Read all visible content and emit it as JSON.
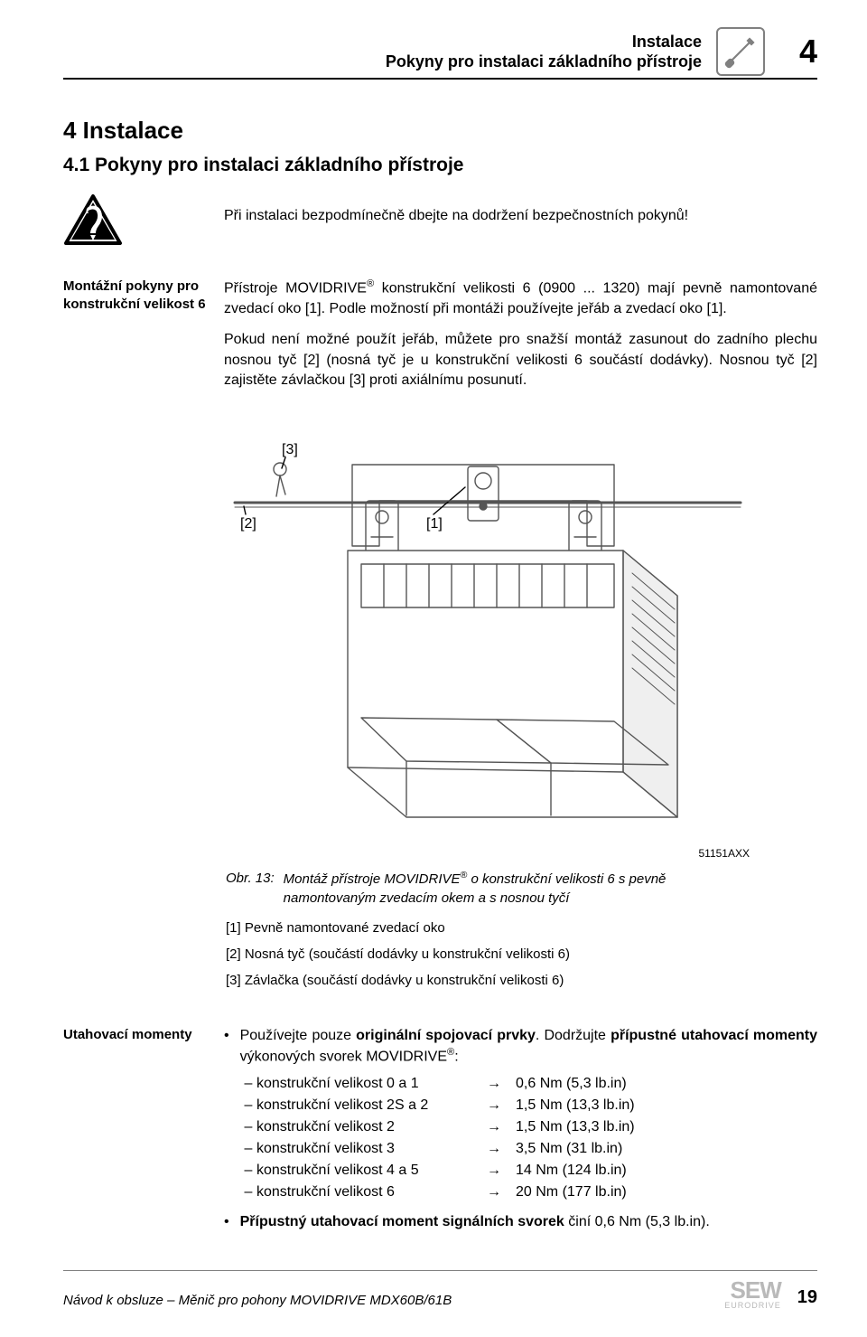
{
  "header": {
    "line1": "Instalace",
    "line2": "Pokyny pro instalaci základního přístroje",
    "chapter_number": "4"
  },
  "section": {
    "h1": "4    Instalace",
    "h2": "4.1  Pokyny pro instalaci základního přístroje"
  },
  "warning_text": "Při instalaci bezpodmínečně dbejte na dodržení bezpečnostních pokynů!",
  "mount_block": {
    "label": "Montážní pokyny pro konstrukční velikost 6",
    "p1_a": "Přístroje MOVIDRIVE",
    "reg": "®",
    "p1_b": " konstrukční velikosti 6 (0900 ... 1320) mají pevně namontované zvedací oko [1]. Podle možností při montáži používejte jeřáb a zvedací oko [1].",
    "p2": "Pokud není možné použít jeřáb, můžete pro snažší montáž zasunout do zadního plechu nosnou tyč [2] (nosná tyč je u konstrukční velikosti 6 součástí dodávky). Nosnou tyč [2] zajistěte závlačkou [3] proti axiálnímu posunutí."
  },
  "figure": {
    "labels": {
      "l1": "[1]",
      "l2": "[2]",
      "l3": "[3]"
    },
    "ref_code": "51151AXX",
    "cap_id": "Obr. 13:",
    "cap_text_a": "Montáž přístroje MOVIDRIVE",
    "cap_text_b": " o konstrukční velikosti 6 s pevně namontovaným zvedacím okem a s nosnou tyčí",
    "legend": [
      "[1] Pevně namontované zvedací oko",
      "[2] Nosná tyč (součástí dodávky u konstrukční velikosti 6)",
      "[3] Závlačka (součástí dodávky u konstrukční velikosti 6)"
    ]
  },
  "torque": {
    "label": "Utahovací momenty",
    "intro_a": "Používejte pouze ",
    "intro_b": "originální spojovací prvky",
    "intro_c": ". Dodržujte ",
    "intro_d": "přípustné utahovací momenty",
    "intro_e": " výkonových svorek MOVIDRIVE",
    "intro_f": ":",
    "rows": [
      {
        "label": "konstrukční velikost 0 a 1",
        "value": "0,6 Nm (5,3 lb.in)"
      },
      {
        "label": "konstrukční velikost 2S a 2",
        "value": "1,5 Nm (13,3 lb.in)"
      },
      {
        "label": "konstrukční velikost 2",
        "value": "1,5 Nm (13,3 lb.in)"
      },
      {
        "label": "konstrukční velikost 3",
        "value": "3,5 Nm (31 lb.in)"
      },
      {
        "label": "konstrukční velikost 4 a 5",
        "value": "14 Nm (124 lb.in)"
      },
      {
        "label": "konstrukční velikost 6",
        "value": "20 Nm (177 lb.in)"
      }
    ],
    "closing_a": "Přípustný utahovací moment signálních svorek",
    "closing_b": " činí 0,6 Nm (5,3 lb.in)."
  },
  "footer": {
    "text": "Návod k obsluze – Měnič pro pohony MOVIDRIVE MDX60B/61B",
    "page": "19",
    "logo_top": "SEW",
    "logo_bottom": "EURODRIVE"
  },
  "colors": {
    "icon_stroke": "#808080",
    "rule": "#000000",
    "logo": "#b9b9b9"
  }
}
